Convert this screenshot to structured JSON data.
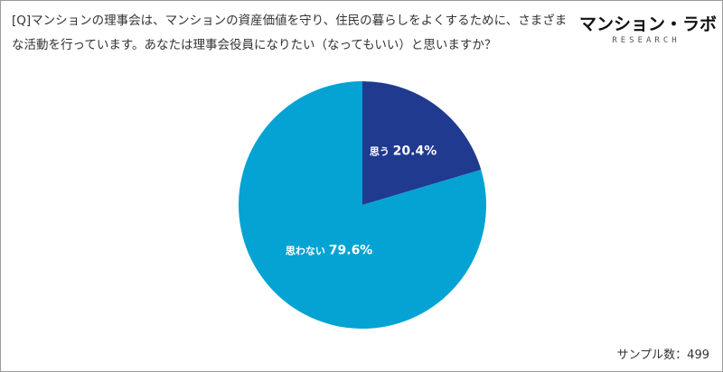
{
  "question": "[Q]マンションの理事会は、マンションの資産価値を守り、住民の暮らしをよくするために、さまざまな活動を行っています。あなたは理事会役員になりたい（なってもいい）と思いますか？",
  "logo": {
    "main": "マンション・ラボ",
    "sub": "RESEARCH"
  },
  "footnote": "サンプル数：499",
  "chart_data": {
    "type": "pie",
    "slices": [
      {
        "label": "思う",
        "value": 20.4,
        "display": "20.4%",
        "color": "#1f3a8f"
      },
      {
        "label": "思わない",
        "value": 79.6,
        "display": "79.6%",
        "color": "#04a3d3"
      }
    ],
    "sample_size": 499
  }
}
